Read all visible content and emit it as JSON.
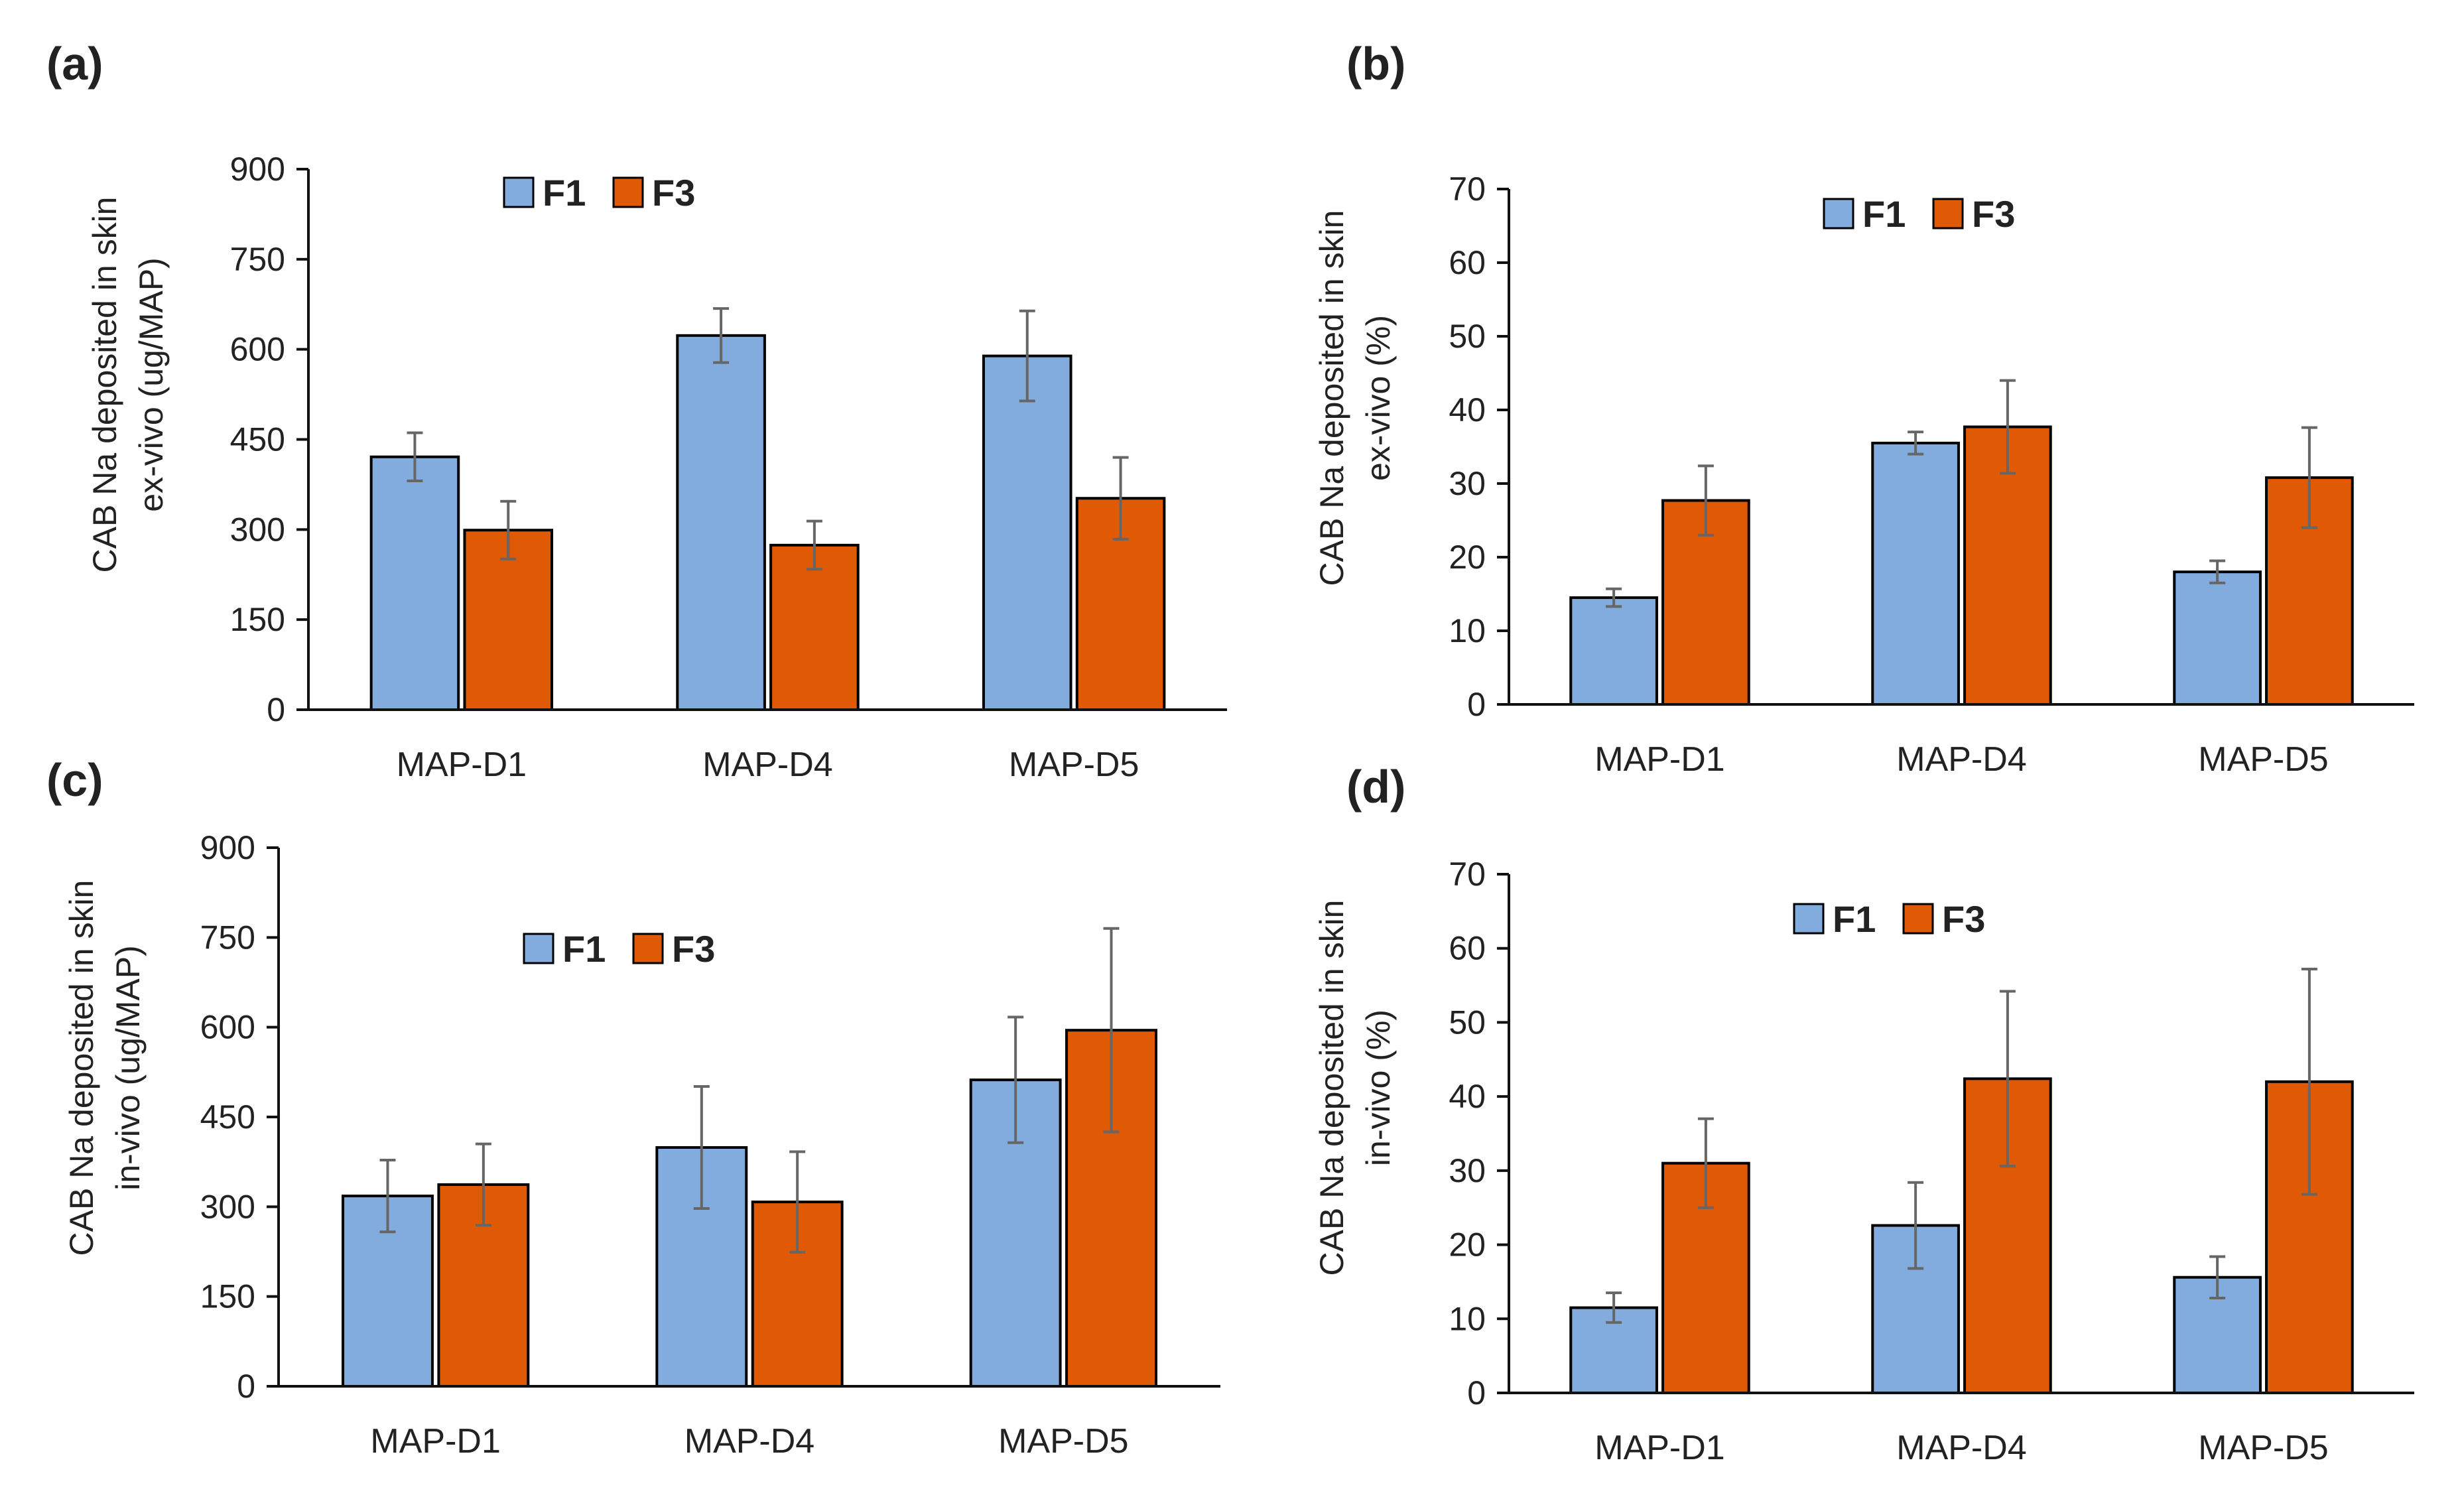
{
  "colors": {
    "F1": "#82ABDE",
    "F3": "#E05A05",
    "error_bar": "#666666",
    "axis": "#111111",
    "bar_outline": "#000000"
  },
  "chart_data": [
    {
      "type": "bar",
      "panel": "(a)",
      "title": "",
      "ylabel_line1": "CAB Na deposited in skin",
      "ylabel_line2": "ex-vivo (ug/MAP)",
      "ylim": [
        0,
        900
      ],
      "yticks": [
        0,
        150,
        300,
        450,
        600,
        750,
        900
      ],
      "categories": [
        "MAP-D1",
        "MAP-D4",
        "MAP-D5"
      ],
      "legend_position": "top-center",
      "series": [
        {
          "name": "F1",
          "values": [
            421,
            623,
            589
          ],
          "errors": [
            40,
            45,
            75
          ]
        },
        {
          "name": "F3",
          "values": [
            299,
            274,
            352
          ],
          "errors": [
            48,
            40,
            68
          ]
        }
      ]
    },
    {
      "type": "bar",
      "panel": "(b)",
      "title": "",
      "ylabel_line1": "CAB Na deposited in skin",
      "ylabel_line2": "ex-vivo (%)",
      "ylim": [
        0,
        70
      ],
      "yticks": [
        0,
        10,
        20,
        30,
        40,
        50,
        60,
        70
      ],
      "categories": [
        "MAP-D1",
        "MAP-D4",
        "MAP-D5"
      ],
      "legend_position": "top-center",
      "series": [
        {
          "name": "F1",
          "values": [
            14.5,
            35.5,
            18.0
          ],
          "errors": [
            1.2,
            1.5,
            1.5
          ]
        },
        {
          "name": "F3",
          "values": [
            27.7,
            37.7,
            30.8
          ],
          "errors": [
            4.7,
            6.3,
            6.8
          ]
        }
      ]
    },
    {
      "type": "bar",
      "panel": "(c)",
      "title": "",
      "ylabel_line1": "CAB Na deposited in skin",
      "ylabel_line2": "in-vivo (ug/MAP)",
      "ylim": [
        0,
        900
      ],
      "yticks": [
        0,
        150,
        300,
        450,
        600,
        750,
        900
      ],
      "categories": [
        "MAP-D1",
        "MAP-D4",
        "MAP-D5"
      ],
      "legend_position": "top-center",
      "series": [
        {
          "name": "F1",
          "values": [
            318,
            399,
            512
          ],
          "errors": [
            60,
            102,
            105
          ]
        },
        {
          "name": "F3",
          "values": [
            337,
            308,
            595
          ],
          "errors": [
            68,
            84,
            170
          ]
        }
      ]
    },
    {
      "type": "bar",
      "panel": "(d)",
      "title": "",
      "ylabel_line1": "CAB Na deposited in skin",
      "ylabel_line2": "in-vivo (%)",
      "ylim": [
        0,
        70
      ],
      "yticks": [
        0,
        10,
        20,
        30,
        40,
        50,
        60,
        70
      ],
      "categories": [
        "MAP-D1",
        "MAP-D4",
        "MAP-D5"
      ],
      "legend_position": "top-center",
      "series": [
        {
          "name": "F1",
          "values": [
            11.5,
            22.6,
            15.6
          ],
          "errors": [
            2.0,
            5.8,
            2.8
          ]
        },
        {
          "name": "F3",
          "values": [
            31.0,
            42.4,
            42.0
          ],
          "errors": [
            6.0,
            11.8,
            15.2
          ]
        }
      ]
    }
  ]
}
